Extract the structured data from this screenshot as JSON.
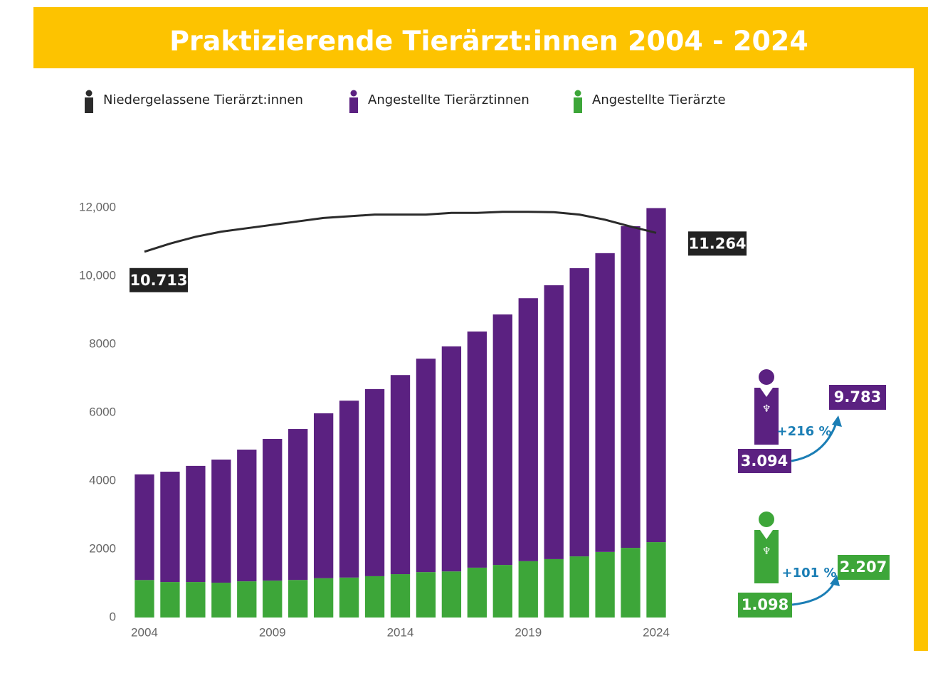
{
  "chart_data": {
    "type": "bar",
    "title": "Praktizierende Tierärzt:innen 2004 - 2024",
    "stacked": true,
    "x": [
      2004,
      2005,
      2006,
      2007,
      2008,
      2009,
      2010,
      2011,
      2012,
      2013,
      2014,
      2015,
      2016,
      2017,
      2018,
      2019,
      2020,
      2021,
      2022,
      2023,
      2024
    ],
    "xlim": [
      2003.5,
      2024.5
    ],
    "xticks": [
      2004,
      2009,
      2014,
      2019,
      2024
    ],
    "ylim": [
      0,
      12000
    ],
    "yticks": [
      0,
      2000,
      4000,
      6000,
      8000,
      {
        "value": 10000,
        "label": "10,000"
      },
      {
        "value": 12000,
        "label": "12,000"
      }
    ],
    "series": [
      {
        "name": "Niedergelassene Tierärzt:innen",
        "type": "line",
        "color": "#2b2b2b",
        "values": [
          10713,
          10950,
          11150,
          11300,
          11400,
          11500,
          11600,
          11700,
          11750,
          11800,
          11800,
          11800,
          11850,
          11850,
          11880,
          11880,
          11870,
          11800,
          11650,
          11450,
          11264
        ],
        "value_labels": [
          "10.713",
          null,
          null,
          null,
          null,
          null,
          null,
          null,
          null,
          null,
          null,
          null,
          null,
          null,
          null,
          null,
          null,
          null,
          null,
          null,
          "11.264"
        ]
      },
      {
        "name": "Angestellte Tierärztinnen",
        "type": "bar",
        "color": "#5b2181",
        "values": [
          3094,
          3230,
          3400,
          3605,
          3857,
          4150,
          4420,
          4830,
          5180,
          5480,
          5830,
          6250,
          6590,
          6915,
          7335,
          7700,
          8020,
          8440,
          8750,
          9420,
          9783
        ]
      },
      {
        "name": "Angestellte Tierärzte",
        "type": "bar",
        "color": "#3da639",
        "values": [
          1098,
          1040,
          1040,
          1020,
          1060,
          1080,
          1100,
          1150,
          1170,
          1210,
          1270,
          1330,
          1350,
          1460,
          1540,
          1650,
          1710,
          1790,
          1920,
          2040,
          2207
        ]
      }
    ],
    "summary": [
      {
        "from": "3.094",
        "to": "9.783",
        "change": "+216 %"
      },
      {
        "from": "1.098",
        "to": "2.207",
        "change": "+101 %"
      }
    ]
  }
}
